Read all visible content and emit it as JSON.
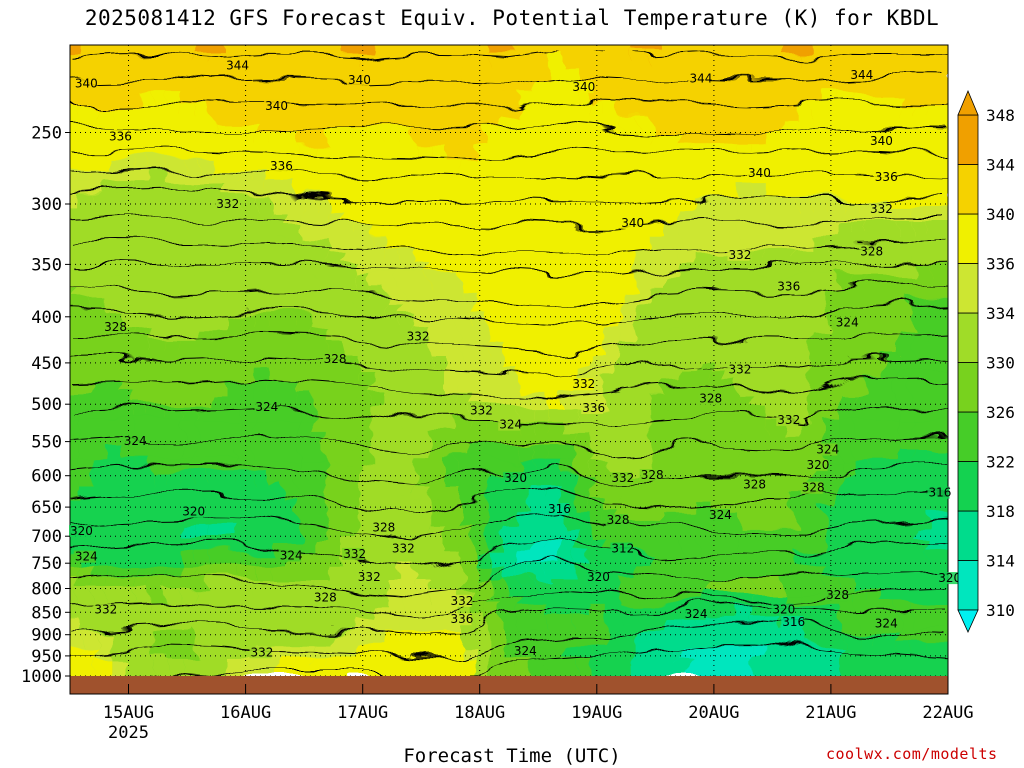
{
  "title": "2025081412 GFS Forecast Equiv. Potential Temperature (K) for KBDL",
  "xlabel": "Forecast Time (UTC)",
  "watermark": "coolwx.com/modelts",
  "colors": {
    "ground": "#a0522d",
    "watermark": "#cc0000",
    "grid": "#000000"
  },
  "chart_data": {
    "type": "heatmap",
    "title": "2025081412 GFS Forecast Equiv. Potential Temperature (K) for KBDL",
    "xlabel": "Forecast Time (UTC)",
    "ylabel": "",
    "x_ticks": [
      {
        "label": "15AUG",
        "sub": "2025",
        "t": 12
      },
      {
        "label": "16AUG",
        "sub": "",
        "t": 36
      },
      {
        "label": "17AUG",
        "sub": "",
        "t": 60
      },
      {
        "label": "18AUG",
        "sub": "",
        "t": 84
      },
      {
        "label": "19AUG",
        "sub": "",
        "t": 108
      },
      {
        "label": "20AUG",
        "sub": "",
        "t": 132
      },
      {
        "label": "21AUG",
        "sub": "",
        "t": 156
      },
      {
        "label": "22AUG",
        "sub": "",
        "t": 180
      }
    ],
    "x_range_hours": [
      0,
      180
    ],
    "y_ticks": [
      250,
      300,
      350,
      400,
      450,
      500,
      550,
      600,
      650,
      700,
      750,
      800,
      850,
      900,
      950,
      1000
    ],
    "y_range_hpa": [
      200,
      1000
    ],
    "y_scale": "log",
    "grid": true,
    "colorbar": {
      "levels": [
        310,
        314,
        318,
        322,
        326,
        330,
        334,
        336,
        340,
        344,
        348
      ],
      "colors": [
        "#00f0f0",
        "#00e6be",
        "#00dc8c",
        "#14d250",
        "#46cd28",
        "#78d21e",
        "#a0dc28",
        "#cde632",
        "#f0f000",
        "#f5d200",
        "#f0a000"
      ]
    },
    "theta_e_series": [
      {
        "level": 250,
        "values": [
          338,
          339,
          338,
          339,
          340,
          341,
          340,
          340,
          341,
          340,
          336,
          339,
          340,
          341,
          342,
          339,
          338,
          339
        ]
      },
      {
        "level": 300,
        "values": [
          335,
          333,
          332,
          333,
          334,
          336,
          337,
          338,
          339,
          339,
          340,
          340,
          338,
          336,
          335,
          336,
          336,
          337
        ]
      },
      {
        "level": 400,
        "values": [
          329,
          330,
          332,
          331,
          330,
          330,
          332,
          334,
          335,
          337,
          339,
          338,
          333,
          332,
          333,
          332,
          328,
          325
        ]
      },
      {
        "level": 500,
        "values": [
          326,
          325,
          327,
          326,
          324,
          326,
          328,
          332,
          334,
          335,
          337,
          334,
          330,
          328,
          330,
          332,
          326,
          325
        ]
      },
      {
        "level": 600,
        "values": [
          324,
          321,
          322,
          322,
          322,
          324,
          330,
          332,
          324,
          322,
          319,
          330,
          330,
          328,
          328,
          328,
          322,
          320
        ]
      },
      {
        "level": 700,
        "values": [
          321,
          319,
          318,
          317,
          318,
          322,
          330,
          333,
          329,
          318,
          314,
          324,
          326,
          324,
          326,
          326,
          320,
          317
        ]
      },
      {
        "level": 750,
        "values": [
          323,
          320,
          321,
          323,
          324,
          327,
          332,
          334,
          330,
          315,
          311,
          320,
          322,
          322,
          322,
          322,
          320,
          318
        ]
      },
      {
        "level": 800,
        "values": [
          330,
          329,
          328,
          330,
          330,
          331,
          332,
          335,
          333,
          320,
          318,
          320,
          324,
          326,
          328,
          326,
          322,
          320
        ]
      },
      {
        "level": 850,
        "values": [
          333,
          332,
          331,
          332,
          333,
          333,
          333,
          336,
          335,
          324,
          321,
          322,
          322,
          320,
          318,
          320,
          323,
          322
        ]
      },
      {
        "level": 900,
        "values": [
          335,
          333,
          330,
          330,
          332,
          333,
          334,
          336,
          336,
          326,
          323,
          323,
          318,
          316,
          316,
          318,
          322,
          324
        ]
      },
      {
        "level": 950,
        "values": [
          338,
          334,
          328,
          331,
          334,
          334,
          336,
          338,
          338,
          324,
          322,
          321,
          316,
          313,
          313,
          315,
          318,
          322
        ]
      },
      {
        "level": 1000,
        "values": [
          340,
          336,
          333,
          334,
          336,
          338,
          339,
          341,
          340,
          330,
          326,
          322,
          318,
          314,
          314,
          316,
          319,
          322
        ]
      }
    ],
    "series_hours": [
      0,
      10,
      20,
      30,
      40,
      50,
      60,
      70,
      80,
      90,
      100,
      110,
      120,
      130,
      140,
      150,
      160,
      180
    ],
    "contour_labels": [
      {
        "text": "344",
        "t": 32,
        "p": 213
      },
      {
        "text": "340",
        "t": 1,
        "p": 223
      },
      {
        "text": "340",
        "t": 57,
        "p": 221
      },
      {
        "text": "340",
        "t": 103,
        "p": 225
      },
      {
        "text": "344",
        "t": 127,
        "p": 220
      },
      {
        "text": "344",
        "t": 160,
        "p": 218
      },
      {
        "text": "336",
        "t": 8,
        "p": 255
      },
      {
        "text": "340",
        "t": 40,
        "p": 236
      },
      {
        "text": "340",
        "t": 164,
        "p": 258
      },
      {
        "text": "336",
        "t": 41,
        "p": 275
      },
      {
        "text": "340",
        "t": 139,
        "p": 280
      },
      {
        "text": "336",
        "t": 165,
        "p": 283
      },
      {
        "text": "332",
        "t": 30,
        "p": 303
      },
      {
        "text": "340",
        "t": 113,
        "p": 318
      },
      {
        "text": "332",
        "t": 164,
        "p": 307
      },
      {
        "text": "332",
        "t": 135,
        "p": 345
      },
      {
        "text": "328",
        "t": 162,
        "p": 342
      },
      {
        "text": "336",
        "t": 145,
        "p": 374
      },
      {
        "text": "328",
        "t": 7,
        "p": 415
      },
      {
        "text": "332",
        "t": 69,
        "p": 425
      },
      {
        "text": "324",
        "t": 157,
        "p": 410
      },
      {
        "text": "328",
        "t": 52,
        "p": 450
      },
      {
        "text": "332",
        "t": 103,
        "p": 480
      },
      {
        "text": "332",
        "t": 135,
        "p": 462
      },
      {
        "text": "332",
        "t": 82,
        "p": 513
      },
      {
        "text": "336",
        "t": 105,
        "p": 510
      },
      {
        "text": "328",
        "t": 129,
        "p": 498
      },
      {
        "text": "324",
        "t": 38,
        "p": 509
      },
      {
        "text": "332",
        "t": 145,
        "p": 526
      },
      {
        "text": "324",
        "t": 88,
        "p": 532
      },
      {
        "text": "324",
        "t": 11,
        "p": 555
      },
      {
        "text": "324",
        "t": 153,
        "p": 567
      },
      {
        "text": "320",
        "t": 151,
        "p": 590
      },
      {
        "text": "332",
        "t": 111,
        "p": 610
      },
      {
        "text": "328",
        "t": 117,
        "p": 605
      },
      {
        "text": "320",
        "t": 89,
        "p": 610
      },
      {
        "text": "328",
        "t": 138,
        "p": 620
      },
      {
        "text": "328",
        "t": 150,
        "p": 625
      },
      {
        "text": "316",
        "t": 176,
        "p": 633
      },
      {
        "text": "320",
        "t": 23,
        "p": 664
      },
      {
        "text": "316",
        "t": 98,
        "p": 660
      },
      {
        "text": "328",
        "t": 110,
        "p": 679
      },
      {
        "text": "324",
        "t": 131,
        "p": 670
      },
      {
        "text": "320",
        "t": 0,
        "p": 698
      },
      {
        "text": "328",
        "t": 62,
        "p": 692
      },
      {
        "text": "312",
        "t": 111,
        "p": 730
      },
      {
        "text": "332",
        "t": 66,
        "p": 730
      },
      {
        "text": "324",
        "t": 1,
        "p": 745
      },
      {
        "text": "324",
        "t": 43,
        "p": 743
      },
      {
        "text": "332",
        "t": 56,
        "p": 740
      },
      {
        "text": "320",
        "t": 106,
        "p": 785
      },
      {
        "text": "332",
        "t": 59,
        "p": 785
      },
      {
        "text": "320",
        "t": 178,
        "p": 787
      },
      {
        "text": "328",
        "t": 50,
        "p": 827
      },
      {
        "text": "328",
        "t": 155,
        "p": 822
      },
      {
        "text": "332",
        "t": 78,
        "p": 834
      },
      {
        "text": "332",
        "t": 5,
        "p": 853
      },
      {
        "text": "320",
        "t": 144,
        "p": 853
      },
      {
        "text": "324",
        "t": 126,
        "p": 862
      },
      {
        "text": "336",
        "t": 78,
        "p": 874
      },
      {
        "text": "316",
        "t": 146,
        "p": 880
      },
      {
        "text": "324",
        "t": 165,
        "p": 884
      },
      {
        "text": "332",
        "t": 37,
        "p": 951
      },
      {
        "text": "324",
        "t": 91,
        "p": 948
      }
    ]
  }
}
